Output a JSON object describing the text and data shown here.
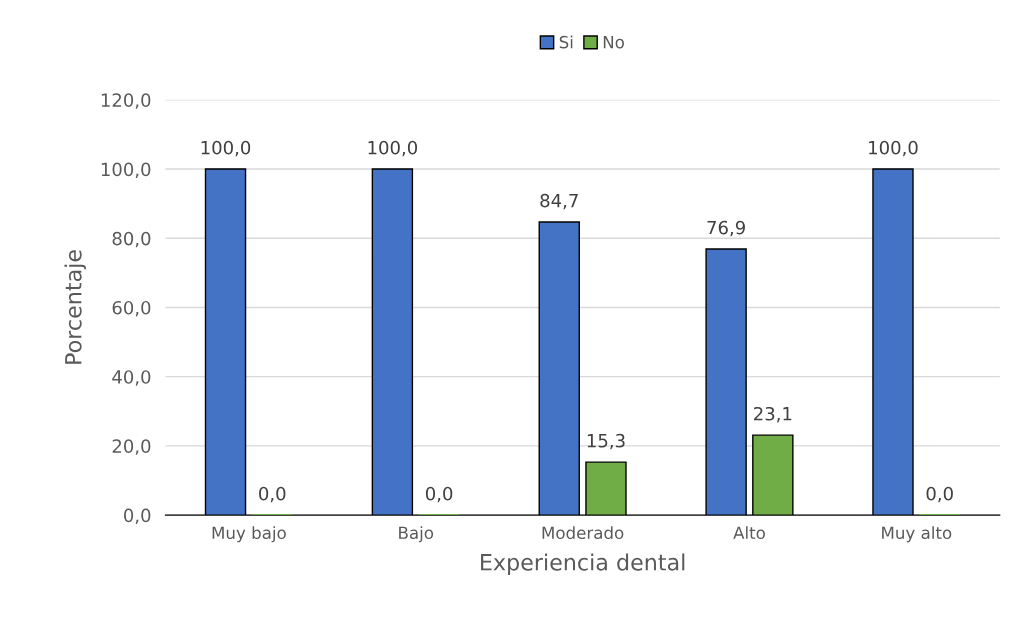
{
  "chart_data": {
    "type": "bar",
    "xlabel": "Experiencia dental",
    "ylabel": "Porcentaje",
    "categories": [
      "Muy bajo",
      "Bajo",
      "Moderado",
      "Alto",
      "Muy alto"
    ],
    "series": [
      {
        "name": "Si",
        "color": "#4472c4",
        "values": [
          100.0,
          100.0,
          84.7,
          76.9,
          100.0
        ],
        "value_labels": [
          "100,0",
          "100,0",
          "84,7",
          "76,9",
          "100,0"
        ]
      },
      {
        "name": "No",
        "color": "#70ad47",
        "values": [
          0.0,
          0.0,
          15.3,
          23.1,
          0.0
        ],
        "value_labels": [
          "0,0",
          "0,0",
          "15,3",
          "23,1",
          "0,0"
        ]
      }
    ],
    "ylim": [
      0,
      120
    ],
    "yticks": [
      {
        "value": 0,
        "label": "0,0"
      },
      {
        "value": 20,
        "label": "20,0"
      },
      {
        "value": 40,
        "label": "40,0"
      },
      {
        "value": 60,
        "label": "60,0"
      },
      {
        "value": 80,
        "label": "80,0"
      },
      {
        "value": 100,
        "label": "100,0"
      },
      {
        "value": 120,
        "label": "120,0"
      }
    ],
    "grid": "y",
    "legend": "top"
  }
}
